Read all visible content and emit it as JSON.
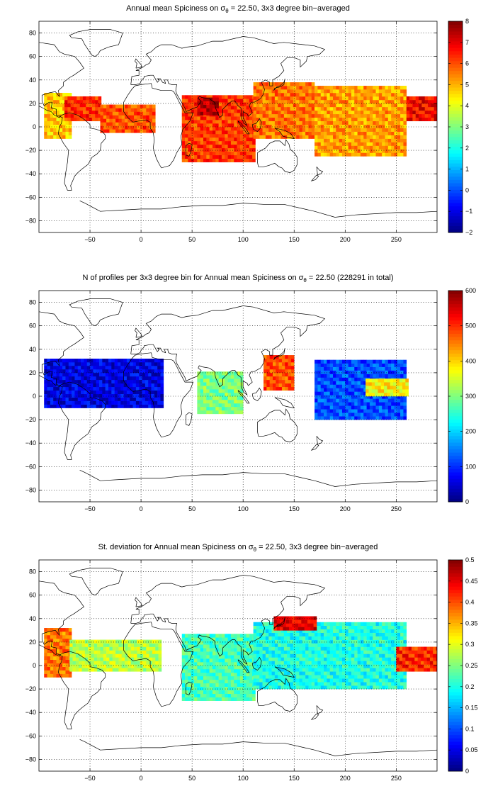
{
  "panels": [
    {
      "id": "spiciness",
      "title_pre": "Annual mean Spiciness on σ",
      "title_sub": "θ",
      "title_post": " = 22.50, 3x3 degree bin−averaged",
      "colorbar_ticks": [
        "8",
        "7",
        "6",
        "5",
        "4",
        "3",
        "2",
        "1",
        "0",
        "−1",
        "−2"
      ]
    },
    {
      "id": "profiles",
      "title_pre": "N of profiles per 3x3 degree bin for Annual mean Spiciness on σ",
      "title_sub": "θ",
      "title_post": " = 22.50 (228291 in total)",
      "colorbar_ticks": [
        "600",
        "500",
        "400",
        "300",
        "200",
        "100",
        "0"
      ]
    },
    {
      "id": "stdev",
      "title_pre": "St. deviation for Annual mean Spiciness on σ",
      "title_sub": "θ",
      "title_post": " = 22.50, 3x3 degree bin−averaged",
      "colorbar_ticks": [
        "0.5",
        "0.45",
        "0.4",
        "0.35",
        "0.3",
        "0.25",
        "0.2",
        "0.15",
        "0.1",
        "0.05",
        "0"
      ]
    }
  ],
  "chart_data": [
    {
      "type": "heatmap",
      "title": "Annual mean Spiciness on σθ = 22.50, 3x3 degree bin−averaged",
      "xlim": [
        -100,
        290
      ],
      "ylim": [
        -90,
        90
      ],
      "xticks": [
        -50,
        0,
        50,
        100,
        150,
        200,
        250
      ],
      "yticks": [
        -80,
        -60,
        -40,
        -20,
        0,
        20,
        40,
        60,
        80
      ],
      "grid": true,
      "colormap": "jet",
      "clim": [
        -2,
        8
      ],
      "regions": [
        {
          "lon": [
            -95,
            -70
          ],
          "lat": [
            -10,
            28
          ],
          "value": 4.8
        },
        {
          "lon": [
            -75,
            -40
          ],
          "lat": [
            5,
            25
          ],
          "value": 6.3
        },
        {
          "lon": [
            -40,
            12
          ],
          "lat": [
            -5,
            18
          ],
          "value": 6.0
        },
        {
          "lon": [
            40,
            110
          ],
          "lat": [
            -30,
            25
          ],
          "value": 6.2
        },
        {
          "lon": [
            55,
            75
          ],
          "lat": [
            10,
            25
          ],
          "value": 7.4
        },
        {
          "lon": [
            110,
            170
          ],
          "lat": [
            -10,
            38
          ],
          "value": 5.6
        },
        {
          "lon": [
            170,
            260
          ],
          "lat": [
            -25,
            35
          ],
          "value": 5.2
        },
        {
          "lon": [
            260,
            290
          ],
          "lat": [
            5,
            25
          ],
          "value": 6.8
        }
      ]
    },
    {
      "type": "heatmap",
      "title": "N of profiles per 3x3 degree bin for Annual mean Spiciness on σθ = 22.50 (228291 in total)",
      "xlim": [
        -100,
        290
      ],
      "ylim": [
        -90,
        90
      ],
      "xticks": [
        -50,
        0,
        50,
        100,
        150,
        200,
        250
      ],
      "yticks": [
        -80,
        -60,
        -40,
        -20,
        0,
        20,
        40,
        60,
        80
      ],
      "grid": true,
      "colormap": "jet",
      "clim": [
        0,
        600
      ],
      "total_profiles": 228291,
      "regions": [
        {
          "lon": [
            -95,
            20
          ],
          "lat": [
            -10,
            30
          ],
          "value": 60
        },
        {
          "lon": [
            55,
            100
          ],
          "lat": [
            -15,
            20
          ],
          "value": 300
        },
        {
          "lon": [
            120,
            150
          ],
          "lat": [
            5,
            35
          ],
          "value": 480
        },
        {
          "lon": [
            170,
            260
          ],
          "lat": [
            -20,
            30
          ],
          "value": 120
        },
        {
          "lon": [
            220,
            260
          ],
          "lat": [
            0,
            15
          ],
          "value": 380
        }
      ]
    },
    {
      "type": "heatmap",
      "title": "St. deviation for Annual mean Spiciness on σθ = 22.50, 3x3 degree bin−averaged",
      "xlim": [
        -100,
        290
      ],
      "ylim": [
        -90,
        90
      ],
      "xticks": [
        -50,
        0,
        50,
        100,
        150,
        200,
        250
      ],
      "yticks": [
        -80,
        -60,
        -40,
        -20,
        0,
        20,
        40,
        60,
        80
      ],
      "grid": true,
      "colormap": "jet",
      "clim": [
        0,
        0.5
      ],
      "regions": [
        {
          "lon": [
            -95,
            -70
          ],
          "lat": [
            -10,
            30
          ],
          "value": 0.38
        },
        {
          "lon": [
            -70,
            20
          ],
          "lat": [
            -5,
            20
          ],
          "value": 0.28
        },
        {
          "lon": [
            40,
            110
          ],
          "lat": [
            -30,
            25
          ],
          "value": 0.22
        },
        {
          "lon": [
            110,
            260
          ],
          "lat": [
            -20,
            35
          ],
          "value": 0.2
        },
        {
          "lon": [
            130,
            170
          ],
          "lat": [
            30,
            40
          ],
          "value": 0.45
        },
        {
          "lon": [
            250,
            290
          ],
          "lat": [
            -5,
            15
          ],
          "value": 0.42
        }
      ]
    }
  ]
}
